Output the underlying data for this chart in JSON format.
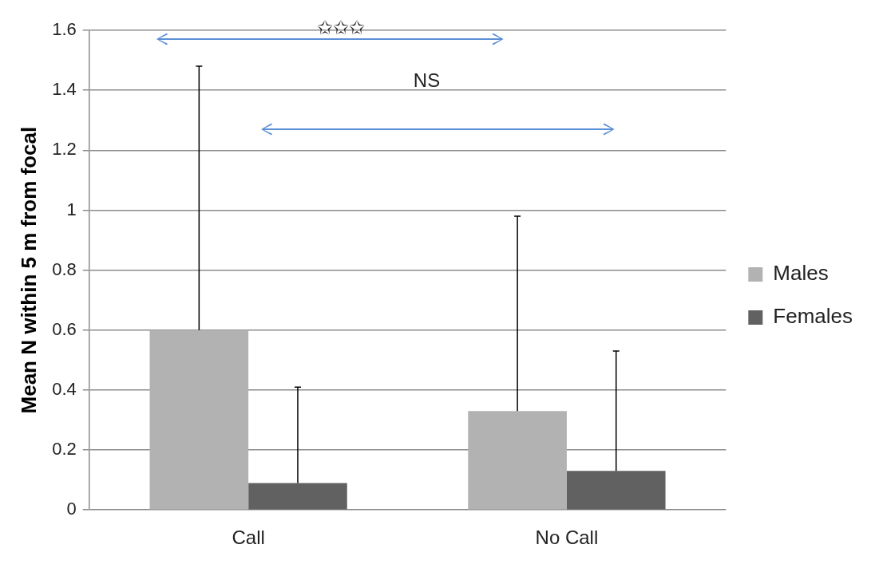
{
  "chart_data": {
    "type": "bar",
    "ylabel": "Mean N within 5 m from focal",
    "categories": [
      "Call",
      "No Call"
    ],
    "series": [
      {
        "name": "Males",
        "color": "#b2b2b2",
        "values": [
          0.6,
          0.33
        ],
        "errors": [
          [
            0.6,
            1.48
          ],
          [
            0.33,
            0.98
          ]
        ]
      },
      {
        "name": "Females",
        "color": "#616161",
        "values": [
          0.09,
          0.13
        ],
        "errors": [
          [
            0.09,
            0.41
          ],
          [
            0.13,
            0.53
          ]
        ]
      }
    ],
    "ylim": [
      0,
      1.6
    ],
    "yticks": [
      0,
      0.2,
      0.4,
      0.6,
      0.8,
      1,
      1.2,
      1.4,
      1.6
    ],
    "grid": "y",
    "legend": "right",
    "annotations": [
      "✩✩✩",
      "NS"
    ]
  }
}
